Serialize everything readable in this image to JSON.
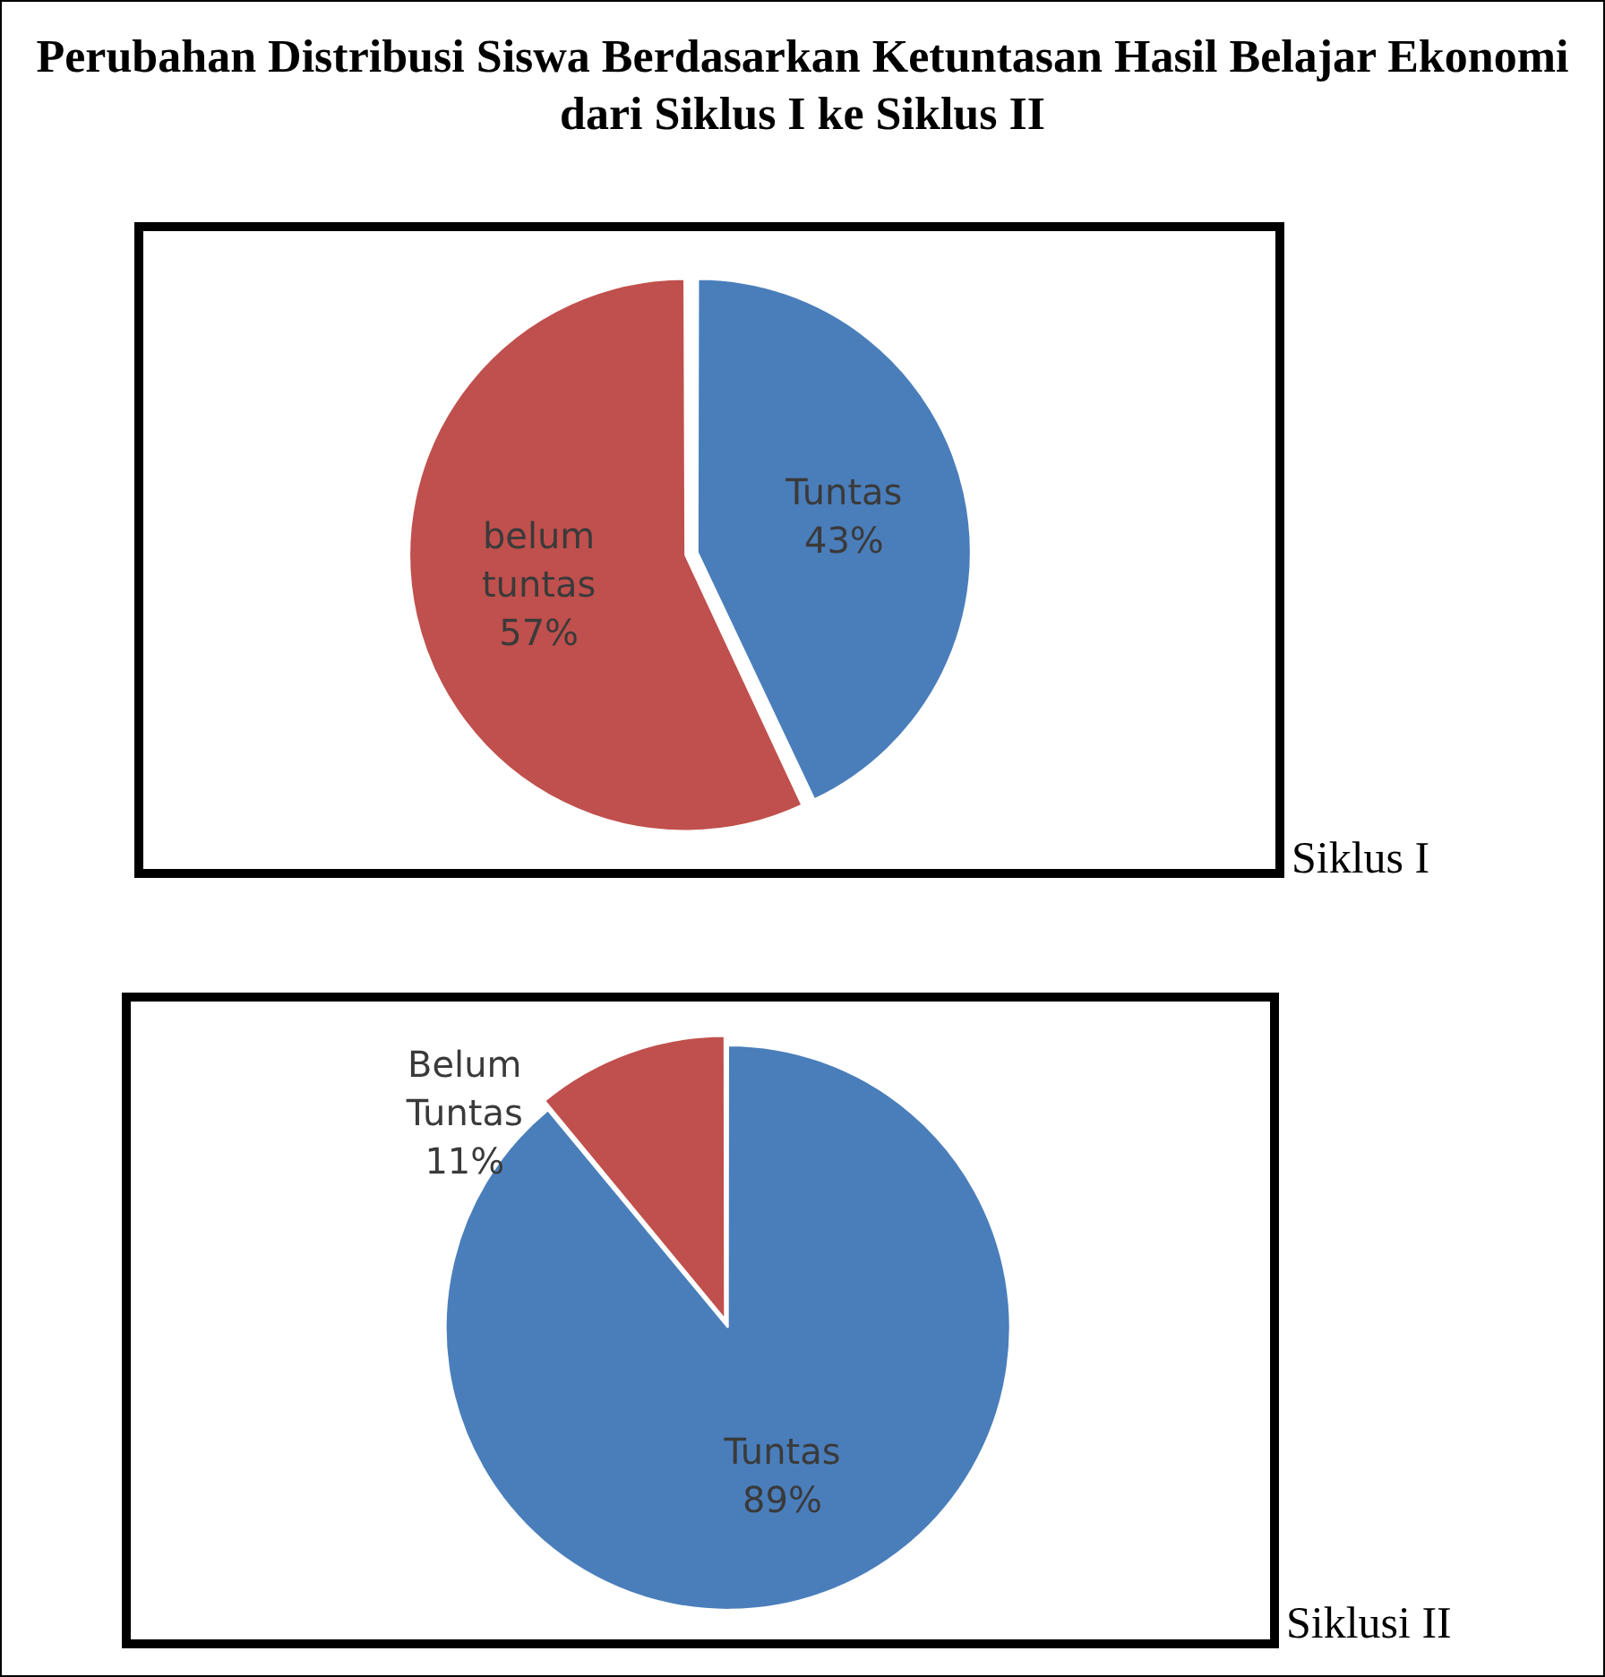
{
  "chart_data": [
    {
      "type": "pie",
      "title": "Perubahan Distribusi Siswa Berdasarkan Ketuntasan Hasil Belajar Ekonomi dari Siklus I ke Siklus II",
      "categories": [
        "Tuntas",
        "belum tuntas"
      ],
      "values": [
        43,
        57
      ],
      "colors": [
        "#4a7ebb",
        "#c0504d"
      ],
      "value_labels": [
        "43%",
        "57%"
      ],
      "legend": false,
      "annotations": [
        "Siklus I"
      ]
    },
    {
      "type": "pie",
      "categories": [
        "Tuntas",
        "Belum Tuntas"
      ],
      "values": [
        89,
        11
      ],
      "colors": [
        "#4a7ebb",
        "#c0504d"
      ],
      "value_labels": [
        "89%",
        "11%"
      ],
      "legend": false,
      "annotations": [
        "Siklusi II"
      ]
    }
  ]
}
